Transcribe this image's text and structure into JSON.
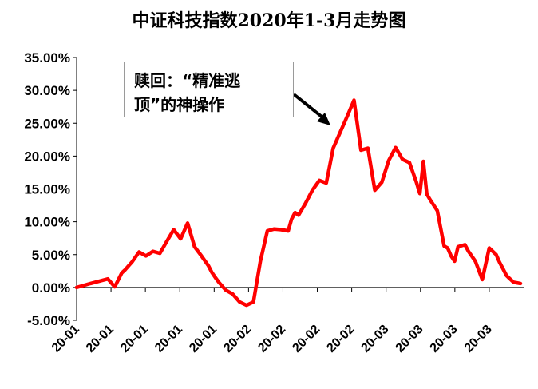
{
  "chart_data": {
    "type": "line",
    "title": "中证科技指数2020年1-3月走势图",
    "xlabel": "",
    "ylabel": "",
    "ylim": [
      -0.05,
      0.35
    ],
    "y_ticks": [
      "-5.00%",
      "0.00%",
      "5.00%",
      "10.00%",
      "15.00%",
      "20.00%",
      "25.00%",
      "30.00%",
      "35.00%"
    ],
    "x_tick_labels": [
      "20-01",
      "20-01",
      "20-01",
      "20-01",
      "20-01",
      "20-02",
      "20-02",
      "20-02",
      "20-02",
      "20-03",
      "20-03",
      "20-03",
      "20-03"
    ],
    "line_color": "#ff0000",
    "annotation": "赎回：“精准逃顶”的神操作",
    "annotation_lines": [
      "赎回：“精准逃",
      "顶”的神操作"
    ],
    "series": [
      {
        "x": [
          0,
          4,
          9,
          11,
          13,
          14,
          16,
          18,
          20,
          22,
          24,
          26,
          28,
          30,
          32,
          34,
          36,
          38,
          39,
          40,
          41,
          43,
          45,
          47,
          49,
          51,
          53,
          55,
          57,
          59,
          61,
          62,
          63,
          64,
          66,
          68,
          70,
          72,
          74,
          76,
          78,
          80,
          82,
          84,
          86,
          88,
          90,
          92,
          94,
          96,
          98,
          99,
          100,
          101,
          102,
          104,
          106,
          107,
          108,
          109,
          110,
          112,
          113,
          115,
          117,
          119,
          121,
          122,
          123,
          124,
          126,
          127,
          128
        ],
        "values": [
          0.0,
          0.006,
          0.013,
          0.001,
          0.022,
          0.027,
          0.039,
          0.054,
          0.048,
          0.055,
          0.052,
          0.07,
          0.088,
          0.074,
          0.098,
          0.062,
          0.048,
          0.033,
          0.023,
          0.015,
          0.008,
          -0.004,
          -0.01,
          -0.022,
          -0.027,
          -0.022,
          0.04,
          0.086,
          0.089,
          0.088,
          0.086,
          0.104,
          0.114,
          0.11,
          0.128,
          0.148,
          0.163,
          0.159,
          0.212,
          0.236,
          0.26,
          0.285,
          0.209,
          0.212,
          0.148,
          0.16,
          0.193,
          0.213,
          0.195,
          0.19,
          0.16,
          0.143,
          0.192,
          0.142,
          0.133,
          0.117,
          0.063,
          0.06,
          0.048,
          0.04,
          0.062,
          0.065,
          0.055,
          0.04,
          0.012,
          0.06,
          0.05,
          0.038,
          0.028,
          0.018,
          0.008,
          0.007,
          0.006
        ]
      }
    ]
  }
}
